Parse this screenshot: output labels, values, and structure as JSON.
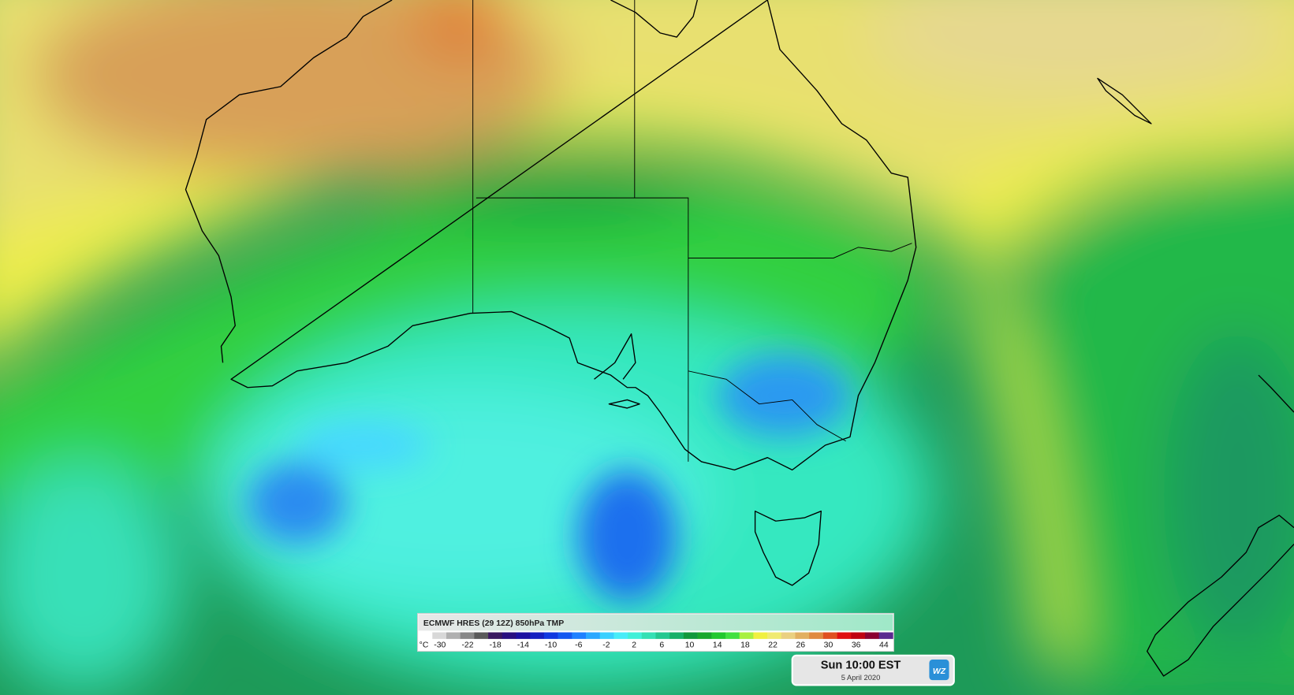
{
  "legend": {
    "title": "ECMWF HRES (29 12Z) 850hPa TMP",
    "unit": "°C",
    "labels": [
      -30,
      -22,
      -18,
      -14,
      -10,
      -6,
      -2,
      2,
      6,
      10,
      14,
      18,
      22,
      26,
      30,
      36,
      44
    ],
    "colors": [
      "#ffffff",
      "#d8d8d8",
      "#b0b0b0",
      "#888888",
      "#5a5a5a",
      "#3a1860",
      "#2a0f80",
      "#1c10a0",
      "#1420c0",
      "#1038e0",
      "#1458f0",
      "#1e80ff",
      "#2aa8ff",
      "#3ad0ff",
      "#48ecf8",
      "#40f0d8",
      "#34e0b4",
      "#24c890",
      "#18b068",
      "#12983c",
      "#1aa82c",
      "#22c82e",
      "#40e040",
      "#a8f040",
      "#f0f040",
      "#f0ea70",
      "#ead080",
      "#e2b060",
      "#e08a40",
      "#e05020",
      "#e01010",
      "#c00010",
      "#8a0030",
      "#5a2a90"
    ]
  },
  "timestamp": {
    "time": "Sun 10:00 EST",
    "date": "5 April 2020"
  },
  "logo": "WZ"
}
